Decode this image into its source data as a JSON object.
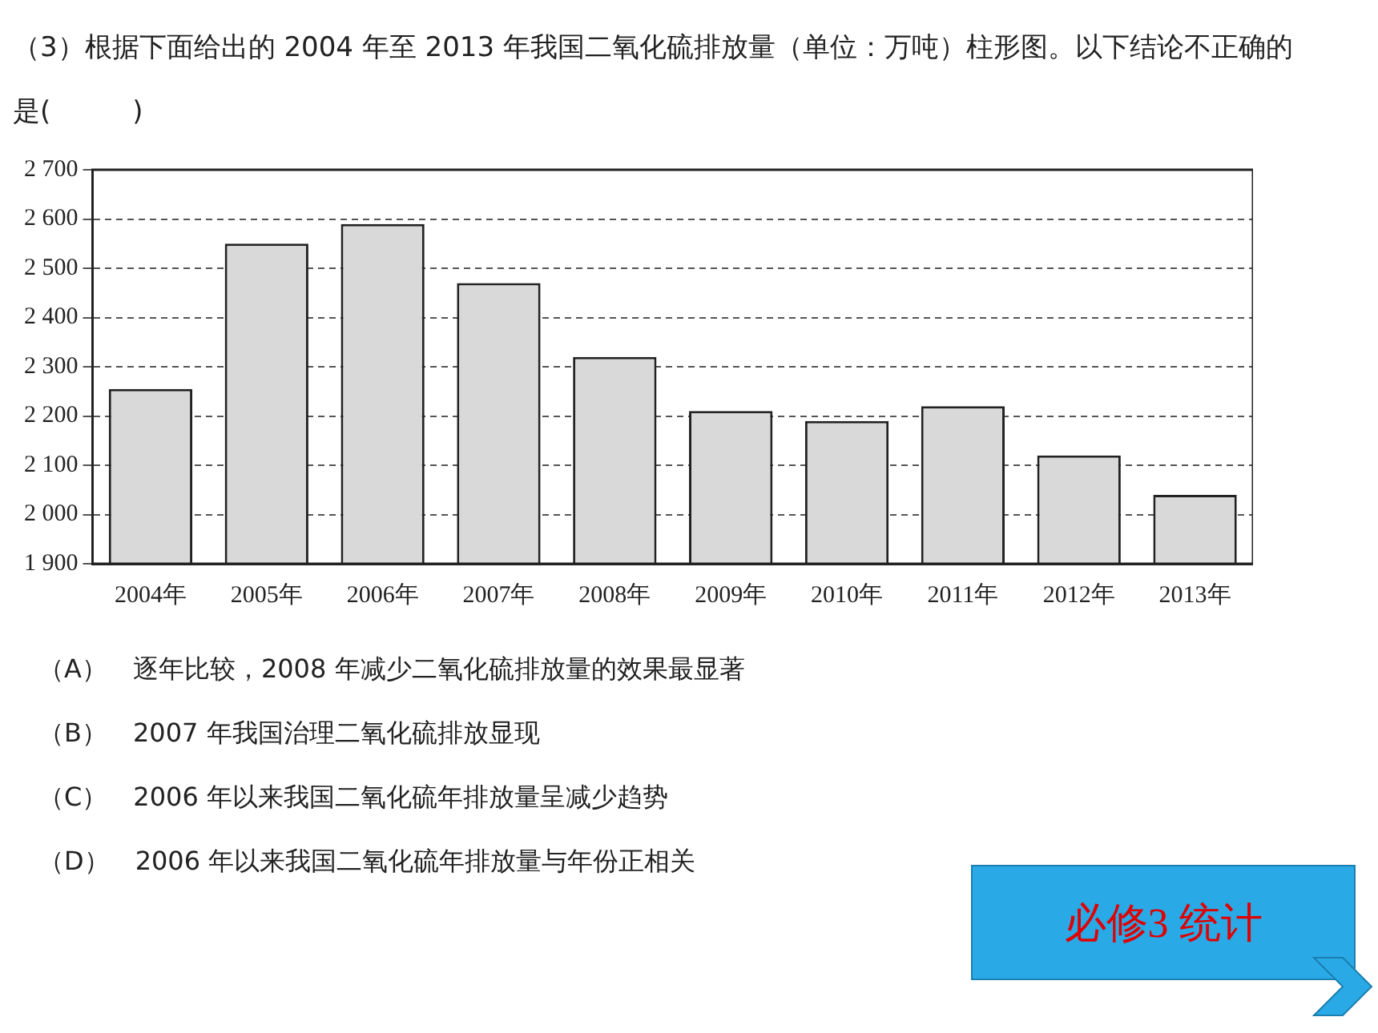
{
  "chart_data": {
    "type": "bar",
    "title": "（3）根据下面给出的 2004 年至 2013 年我国二氧化硫排放量（单位：万吨）柱形图。以下结论不正确的是(　　　)",
    "categories": [
      "2004年",
      "2005年",
      "2006年",
      "2007年",
      "2008年",
      "2009年",
      "2010年",
      "2011年",
      "2012年",
      "2013年"
    ],
    "values": [
      2255,
      2550,
      2590,
      2470,
      2320,
      2210,
      2190,
      2220,
      2120,
      2040
    ],
    "color": "#d9d9d9",
    "ylim": [
      1900,
      2700
    ],
    "yticks": [
      {
        "value": 1900,
        "label": "1 900"
      },
      {
        "value": 2000,
        "label": "2 000"
      },
      {
        "value": 2100,
        "label": "2 100"
      },
      {
        "value": 2200,
        "label": "2 200"
      },
      {
        "value": 2300,
        "label": "2 300"
      },
      {
        "value": 2400,
        "label": "2 400"
      },
      {
        "value": 2500,
        "label": "2 500"
      },
      {
        "value": 2600,
        "label": "2 600"
      },
      {
        "value": 2700,
        "label": "2 700"
      }
    ],
    "grid": "y",
    "line_style": "dashed",
    "annotations": [
      "（A）　逐年比较，2008 年减少二氧化硫排放量的效果最显著",
      "（B）　2007 年我国治理二氧化硫排放显现",
      "（C）　2006 年以来我国二氧化硫年排放量呈减少趋势",
      "（D）　2006 年以来我国二氧化硫年排放量与年份正相关",
      "必修3  统计"
    ]
  }
}
